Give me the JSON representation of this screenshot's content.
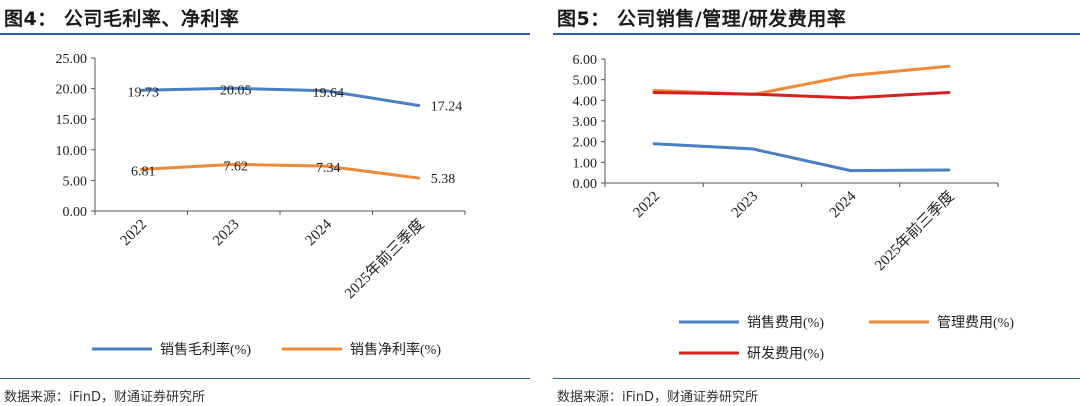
{
  "left": {
    "title": "图4： 公司毛利率、净利率",
    "source": "数据来源：iFinD，财通证券研究所"
  },
  "right": {
    "title": "图5： 公司销售/管理/研发费用率",
    "source": "数据来源：iFinD，财通证券研究所"
  },
  "chart_data": [
    {
      "type": "line",
      "title": "公司毛利率、净利率",
      "categories": [
        "2022",
        "2023",
        "2024",
        "2025年前三季度"
      ],
      "ylim": [
        0,
        25
      ],
      "yticks": [
        "0.00",
        "5.00",
        "10.00",
        "15.00",
        "20.00",
        "25.00"
      ],
      "grid": false,
      "legend": "bottom",
      "series": [
        {
          "name": "销售毛利率(%)",
          "color": "#4a7fc1",
          "values": [
            19.73,
            20.05,
            19.64,
            17.24
          ],
          "labels": [
            "19.73",
            "20.05",
            "19.64",
            "17.24"
          ]
        },
        {
          "name": "销售净利率(%)",
          "color": "#ee8a3a",
          "values": [
            6.81,
            7.62,
            7.34,
            5.38
          ],
          "labels": [
            "6.81",
            "7.62",
            "7.34",
            "5.38"
          ]
        }
      ]
    },
    {
      "type": "line",
      "title": "公司销售/管理/研发费用率",
      "categories": [
        "2022",
        "2023",
        "2024",
        "2025年前三季度"
      ],
      "ylim": [
        0,
        6
      ],
      "yticks": [
        "0.00",
        "1.00",
        "2.00",
        "3.00",
        "4.00",
        "5.00",
        "6.00"
      ],
      "grid": false,
      "legend": "bottom",
      "series": [
        {
          "name": "销售费用(%)",
          "color": "#4a7fc1",
          "values": [
            1.9,
            1.65,
            0.6,
            0.63
          ]
        },
        {
          "name": "管理费用(%)",
          "color": "#ee8a3a",
          "values": [
            4.48,
            4.28,
            5.2,
            5.65
          ]
        },
        {
          "name": "研发费用(%)",
          "color": "#d4201f",
          "values": [
            4.38,
            4.3,
            4.12,
            4.38
          ]
        }
      ]
    }
  ]
}
